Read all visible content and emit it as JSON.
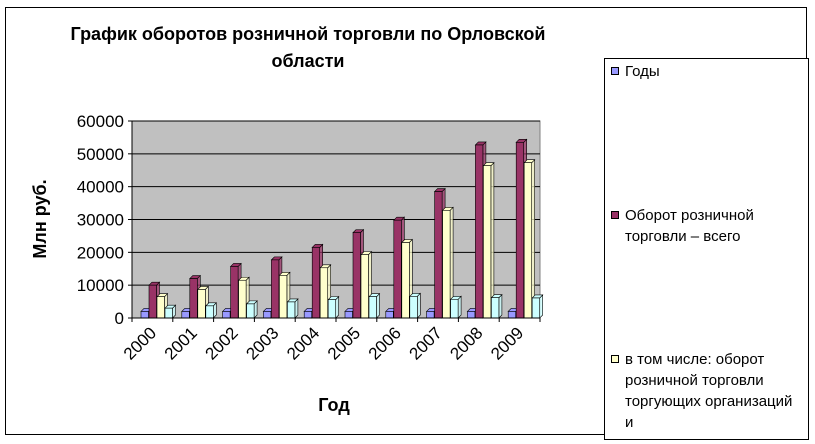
{
  "chart_data": {
    "type": "bar",
    "title": "График оборотов розничной торговли по Орловской области",
    "title_lines": [
      "График оборотов розничной торговли по Орловской",
      "области"
    ],
    "xlabel": "Год",
    "ylabel": "Млн руб.",
    "categories": [
      "2000",
      "2001",
      "2002",
      "2003",
      "2004",
      "2005",
      "2006",
      "2007",
      "2008",
      "2009"
    ],
    "ylim": [
      0,
      60000
    ],
    "yticks": [
      "0",
      "10000",
      "20000",
      "30000",
      "40000",
      "50000",
      "60000"
    ],
    "grid": true,
    "legend_position": "right",
    "plot_background": "#c0c0c0",
    "series": [
      {
        "name": "Годы",
        "color": "#9999ff",
        "values": [
          2000,
          2001,
          2002,
          2003,
          2004,
          2005,
          2006,
          2007,
          2008,
          2009
        ]
      },
      {
        "name": "Оборот розничной торговли – всего",
        "color": "#993366",
        "values": [
          10000,
          12000,
          15700,
          17700,
          21500,
          26000,
          29800,
          38500,
          52700,
          53500
        ]
      },
      {
        "name": "в том числе: оборот розничной торговли торгующих организаций и",
        "color": "#ffffcc",
        "values": [
          6500,
          8700,
          11500,
          13000,
          15300,
          19300,
          23000,
          32800,
          46400,
          47300
        ]
      },
      {
        "name": "",
        "color": "#ccffff",
        "values": [
          3000,
          3700,
          4300,
          4900,
          5600,
          6500,
          6600,
          5700,
          6200,
          6100
        ]
      }
    ]
  }
}
